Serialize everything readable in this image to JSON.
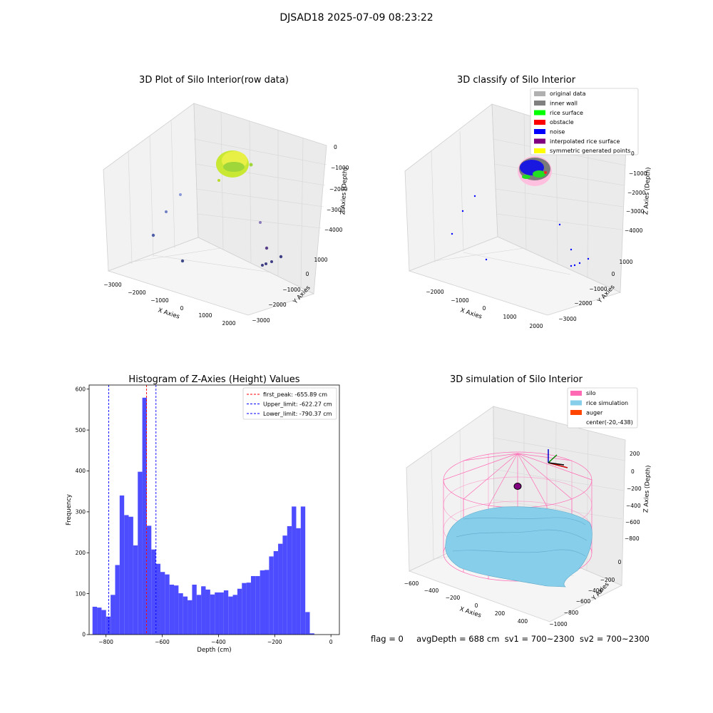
{
  "suptitle": "DJSAD18 2025-07-09 08:23:22",
  "panel1": {
    "title": "3D Plot of Silo Interior(row data)",
    "xlabel": "X Axies",
    "ylabel": "Y Axies",
    "zlabel": "Z Axies (Depth)",
    "xticks": [
      "−3000",
      "−2000",
      "−1000",
      "0",
      "1000",
      "2000"
    ],
    "yticks": [
      "−3000",
      "−2000",
      "−1000",
      "0",
      "1000"
    ],
    "zticks": [
      "0",
      "−1000",
      "−2000",
      "−3000",
      "−4000"
    ]
  },
  "panel2": {
    "title": "3D classify of Silo Interior",
    "xlabel": "X Axies",
    "ylabel": "Y Axies",
    "zlabel": "Z Axies (Depth)",
    "xticks": [
      "−2000",
      "−1000",
      "0",
      "1000",
      "2000"
    ],
    "yticks": [
      "−3000",
      "−2000",
      "−1000",
      "0",
      "1000"
    ],
    "zticks": [
      "0",
      "−1000",
      "−2000",
      "−3000",
      "−4000"
    ],
    "legend": [
      {
        "label": "original data",
        "color": "#b0b0b0"
      },
      {
        "label": "inner wall",
        "color": "#808080"
      },
      {
        "label": "rice surface",
        "color": "#00ff00"
      },
      {
        "label": "obstacle",
        "color": "#ff0000"
      },
      {
        "label": "noise",
        "color": "#0000ff"
      },
      {
        "label": "interpolated rice surface",
        "color": "#800080"
      },
      {
        "label": "symmetric generated points",
        "color": "#ffff00"
      }
    ]
  },
  "panel4": {
    "title": "3D simulation of Silo Interior",
    "xlabel": "X Axies",
    "ylabel": "Y Axies",
    "zlabel": "Z Axies (Depth)",
    "xticks": [
      "−600",
      "−400",
      "−200",
      "0",
      "200",
      "400"
    ],
    "yticks": [
      "−1000",
      "−800",
      "−600",
      "−400",
      "−200",
      "0"
    ],
    "zticks": [
      "200",
      "0",
      "−200",
      "−400",
      "−600",
      "−800"
    ],
    "legend": [
      {
        "label": "silo",
        "color": "#ff69b4"
      },
      {
        "label": "rice simulation",
        "color": "#87ceeb"
      },
      {
        "label": "auger",
        "color": "#ff4500"
      },
      {
        "label": "center(-20,-438)",
        "color": ""
      }
    ]
  },
  "status": {
    "flag": "flag = 0",
    "avg_depth": "avgDepth = 688 cm",
    "sv1": "sv1 = 700~2300",
    "sv2": "sv2 = 700~2300"
  },
  "chart_data": [
    {
      "type": "histogram",
      "title": "Histogram of Z-Axies (Height) Values",
      "xlabel": "Depth (cm)",
      "ylabel": "Frequency",
      "xlim": [
        -860,
        30
      ],
      "ylim": [
        0,
        610
      ],
      "xticks": [
        -800,
        -600,
        -400,
        -200,
        0
      ],
      "yticks": [
        0,
        100,
        200,
        300,
        400,
        500,
        600
      ],
      "bin_start": -848,
      "bin_width": 16.1,
      "values": [
        68,
        66,
        60,
        44,
        97,
        170,
        340,
        292,
        288,
        218,
        398,
        579,
        266,
        208,
        173,
        153,
        147,
        122,
        120,
        101,
        93,
        84,
        122,
        97,
        118,
        110,
        98,
        103,
        103,
        108,
        93,
        97,
        112,
        126,
        127,
        143,
        143,
        157,
        158,
        191,
        204,
        222,
        242,
        265,
        313,
        260,
        313,
        55,
        3
      ],
      "bar_color": "#4d4dff",
      "lines": [
        {
          "label": "first_peak: -655.89 cm",
          "x": -655.89,
          "color": "#ff0000"
        },
        {
          "label": "Upper_limit: -622.27 cm",
          "x": -622.27,
          "color": "#0000ff"
        },
        {
          "label": "Lower_limit: -790.37 cm",
          "x": -790.37,
          "color": "#0000ff"
        }
      ],
      "legend_loc": "upper right"
    }
  ]
}
